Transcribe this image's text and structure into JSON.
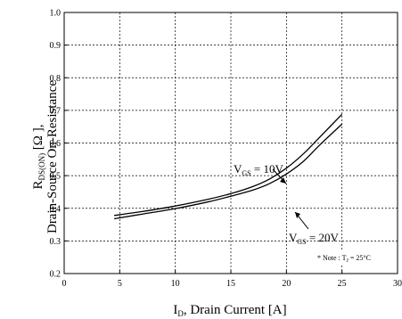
{
  "chart_data": {
    "type": "line",
    "xlabel": {
      "main": "I",
      "sub": "D",
      "rest": ", Drain Current [A]"
    },
    "ylabel": {
      "line1": {
        "main": "R",
        "sub": "DS(ON)",
        "rest": " [Ω ],"
      },
      "line2": "Drain-Source On-Resistance"
    },
    "xlim": [
      0,
      30
    ],
    "ylim": [
      0.2,
      1.0
    ],
    "x_ticks": [
      "0",
      "5",
      "10",
      "15",
      "20",
      "25",
      "30"
    ],
    "y_ticks": [
      "0.2",
      "0.3",
      "0.4",
      "0.5",
      "0.6",
      "0.7",
      "0.8",
      "0.9",
      "1.0"
    ],
    "grid": true,
    "series": [
      {
        "label": {
          "main": "V",
          "sub": "GS",
          "rest": " = 10V"
        },
        "x": [
          4.5,
          7,
          10,
          13,
          15,
          17,
          18.5,
          20,
          21.5,
          23,
          25
        ],
        "y": [
          0.378,
          0.39,
          0.407,
          0.428,
          0.445,
          0.467,
          0.49,
          0.523,
          0.566,
          0.618,
          0.688
        ]
      },
      {
        "label": {
          "main": "V",
          "sub": "GS",
          "rest": " = 20V"
        },
        "x": [
          4.5,
          7,
          10,
          13,
          15,
          17,
          18.5,
          20,
          21.5,
          23,
          25
        ],
        "y": [
          0.368,
          0.382,
          0.399,
          0.42,
          0.437,
          0.456,
          0.476,
          0.505,
          0.543,
          0.594,
          0.658
        ]
      }
    ],
    "note": {
      "prefix": "* Note : T",
      "sub": "J",
      "rest": " = 25°C"
    }
  }
}
